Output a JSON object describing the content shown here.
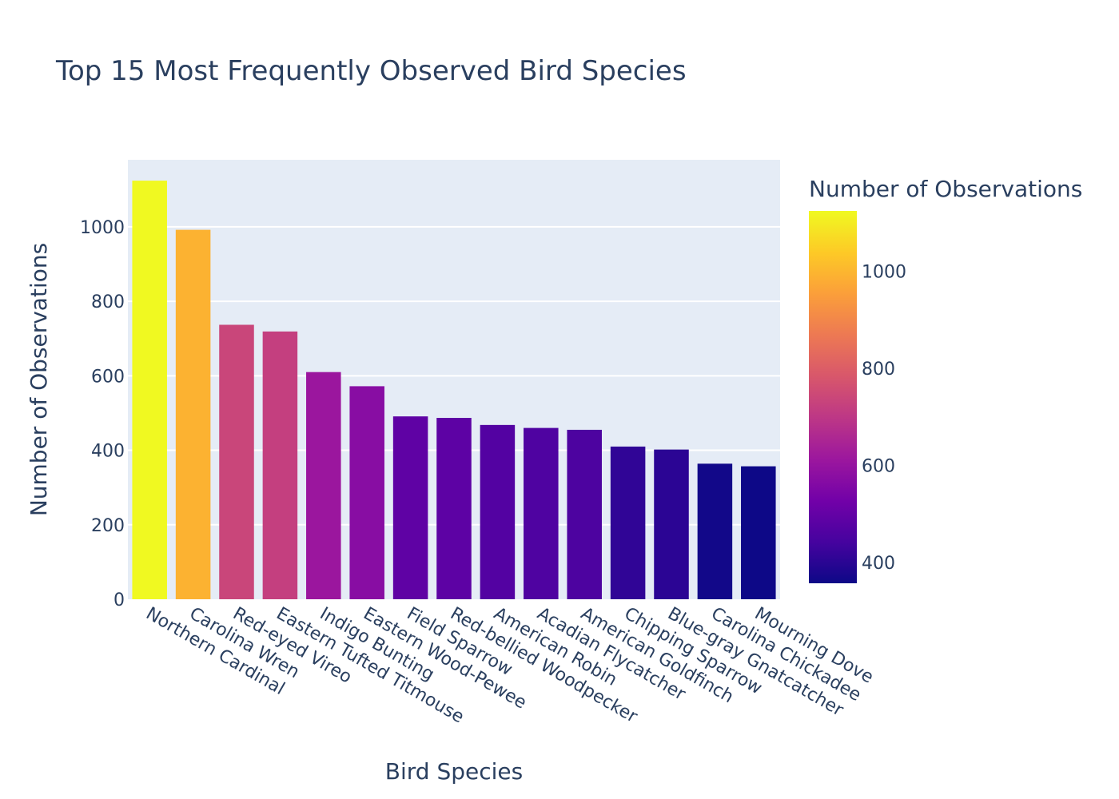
{
  "chart_data": {
    "type": "bar",
    "title": "Top 15 Most Frequently Observed Bird Species",
    "xlabel": "Bird Species",
    "ylabel": "Number of Observations",
    "categories": [
      "Northern Cardinal",
      "Carolina Wren",
      "Red-eyed Vireo",
      "Eastern Tufted Titmouse",
      "Indigo Bunting",
      "Eastern Wood-Pewee",
      "Field Sparrow",
      "Red-bellied Woodpecker",
      "American Robin",
      "Acadian Flycatcher",
      "American Goldfinch",
      "Chipping Sparrow",
      "Blue-gray Gnatcatcher",
      "Carolina Chickadee",
      "Mourning Dove"
    ],
    "values": [
      1124,
      992,
      737,
      719,
      610,
      572,
      491,
      487,
      468,
      460,
      455,
      410,
      402,
      364,
      357
    ],
    "ylim": [
      0,
      1180
    ],
    "yticks": [
      0,
      200,
      400,
      600,
      800,
      1000
    ],
    "grid": true,
    "colorbar": {
      "title": "Number of Observations",
      "colorscale": "Plasma",
      "range": [
        357,
        1124
      ],
      "ticks": [
        400,
        600,
        800,
        1000
      ]
    }
  }
}
